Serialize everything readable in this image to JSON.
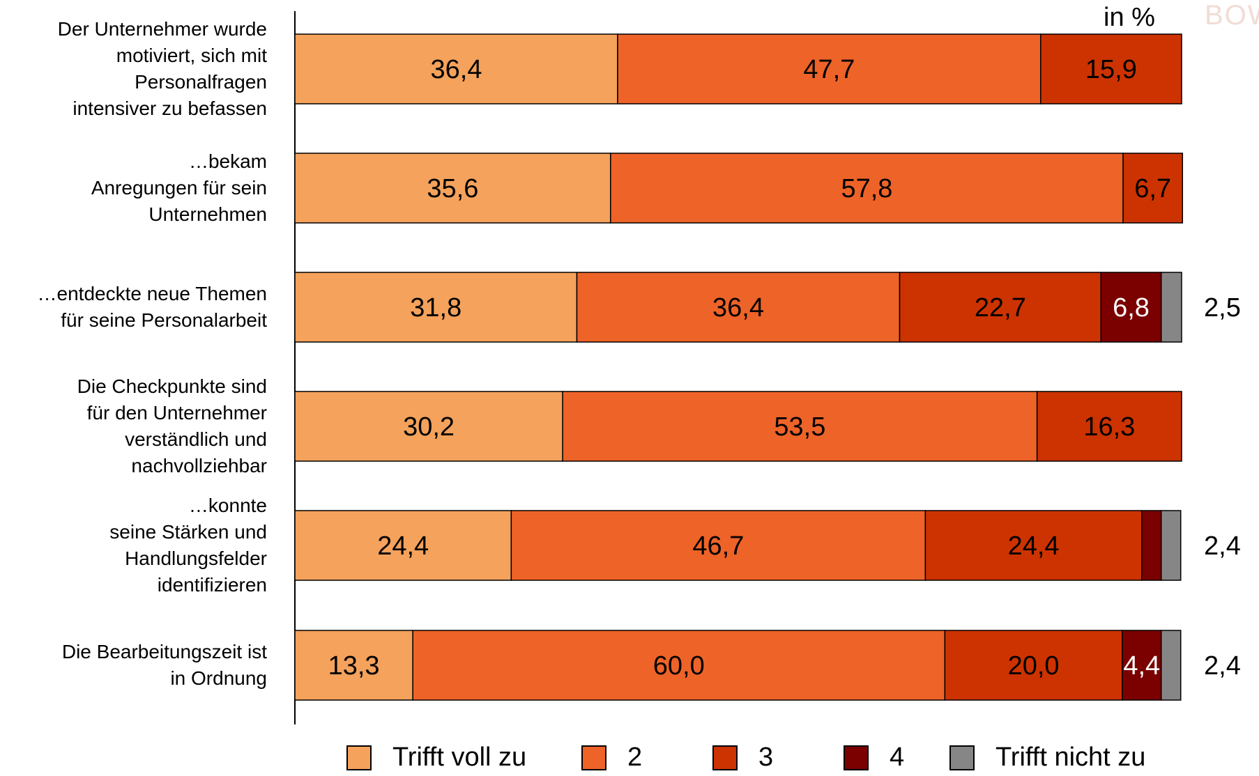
{
  "unit_label": "in %",
  "logo_text": "BOW",
  "colors": {
    "trifft_voll_zu": "#f4a25c",
    "2": "#ee6328",
    "3": "#cc3300",
    "4": "#7b0000",
    "trifft_nicht_zu": "#868686"
  },
  "chart_data": {
    "type": "bar",
    "orientation": "horizontal",
    "stacked": true,
    "xlim": [
      0,
      100
    ],
    "grid": false,
    "legend_position": "bottom",
    "categories": [
      "Der Unternehmer wurde motiviert, sich mit Personalfragen intensiver zu befassen",
      "…bekam Anregungen für sein Unternehmen",
      "…entdeckte neue Themen für seine Personalarbeit",
      "Die Checkpunkte sind für den Unternehmer verständlich und nachvollziehbar",
      "…konnte seine Stärken und Handlungsfelder identifizieren",
      "Die Bearbeitungszeit ist in Ordnung"
    ],
    "category_lines": [
      [
        "Der Unternehmer wurde",
        "motiviert, sich mit",
        "Personalfragen",
        "intensiver zu befassen"
      ],
      [
        "…bekam",
        "Anregungen für sein",
        "Unternehmen"
      ],
      [
        "…entdeckte neue Themen",
        "für seine Personalarbeit"
      ],
      [
        "Die Checkpunkte sind",
        "für den Unternehmer",
        "verständlich und",
        "nachvollziehbar"
      ],
      [
        "…konnte",
        "seine Stärken und",
        "Handlungsfelder",
        "identifizieren"
      ],
      [
        "Die Bearbeitungszeit ist",
        "in Ordnung"
      ]
    ],
    "series": [
      {
        "name": "Trifft voll zu",
        "values": [
          36.4,
          35.6,
          31.8,
          30.2,
          24.4,
          13.3
        ],
        "labels": [
          "36,4",
          "35,6",
          "31,8",
          "30,2",
          "24,4",
          "13,3"
        ]
      },
      {
        "name": "2",
        "values": [
          47.7,
          57.8,
          36.4,
          53.5,
          46.7,
          60.0
        ],
        "labels": [
          "47,7",
          "57,8",
          "36,4",
          "53,5",
          "46,7",
          "60,0"
        ]
      },
      {
        "name": "3",
        "values": [
          15.9,
          6.7,
          22.7,
          16.3,
          24.4,
          20.0
        ],
        "labels": [
          "15,9",
          "6,7",
          "22,7",
          "16,3",
          "24,4",
          "20,0"
        ]
      },
      {
        "name": "4",
        "values": [
          0,
          0,
          6.8,
          0,
          2.2,
          4.4
        ],
        "labels": [
          "",
          "",
          "6,8",
          "",
          "",
          "4,4"
        ]
      },
      {
        "name": "Trifft nicht zu",
        "values": [
          0,
          0,
          2.3,
          0,
          2.2,
          2.2
        ],
        "labels": [
          "",
          "",
          "",
          "",
          "",
          ""
        ]
      }
    ],
    "averages": [
      "",
      "",
      "2,5",
      "",
      "2,4",
      "2,4"
    ]
  }
}
